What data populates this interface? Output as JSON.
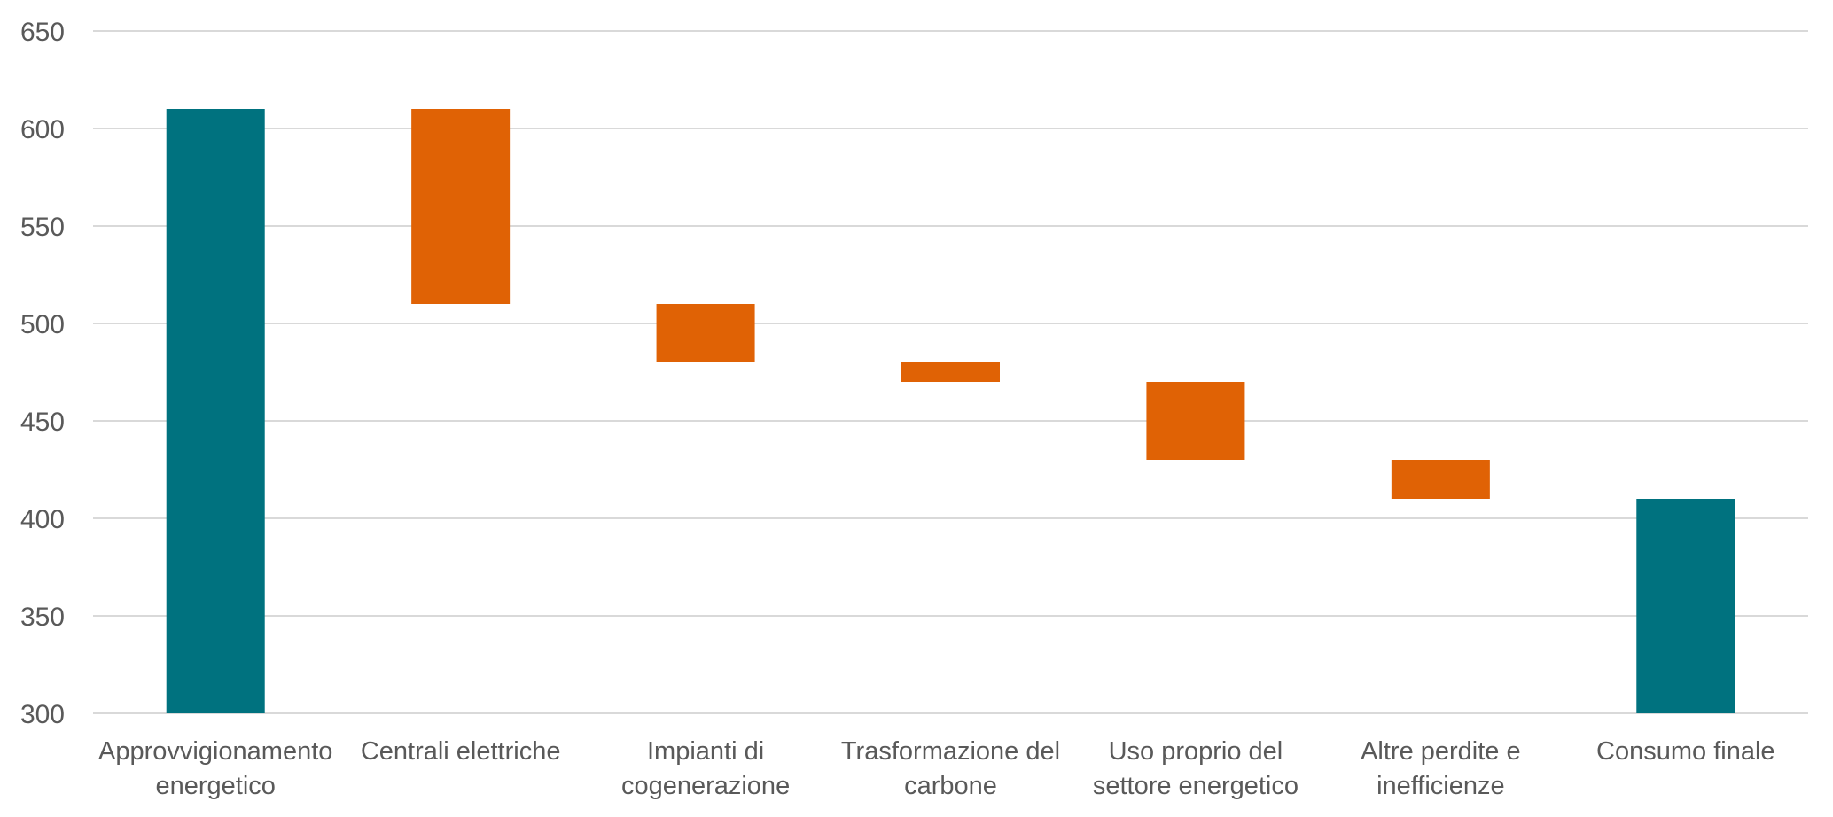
{
  "chart_data": {
    "type": "bar",
    "subtype": "waterfall",
    "title": "",
    "xlabel": "",
    "ylabel": "",
    "ylim": [
      300,
      650
    ],
    "yticks": [
      300,
      350,
      400,
      450,
      500,
      550,
      600,
      650
    ],
    "grid": true,
    "legend": "none",
    "colors": {
      "total": "#00727f",
      "decrease": "#e06205"
    },
    "categories": [
      [
        "Approvvigionamento",
        "energetico"
      ],
      [
        "Centrali elettriche"
      ],
      [
        "Impianti di",
        "cogenerazione"
      ],
      [
        "Trasformazione del",
        "carbone"
      ],
      [
        "Uso proprio del",
        "settore energetico"
      ],
      [
        "Altre perdite e",
        "inefficienze"
      ],
      [
        "Consumo finale"
      ]
    ],
    "bars": [
      {
        "kind": "total",
        "start": 300,
        "end": 610
      },
      {
        "kind": "decrease",
        "start": 610,
        "end": 510
      },
      {
        "kind": "decrease",
        "start": 510,
        "end": 480
      },
      {
        "kind": "decrease",
        "start": 480,
        "end": 470
      },
      {
        "kind": "decrease",
        "start": 470,
        "end": 430
      },
      {
        "kind": "decrease",
        "start": 430,
        "end": 410
      },
      {
        "kind": "total",
        "start": 300,
        "end": 410
      }
    ]
  }
}
